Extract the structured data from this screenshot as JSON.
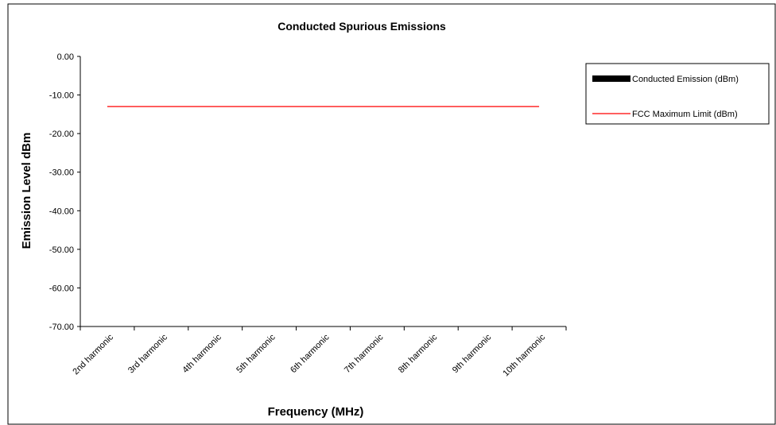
{
  "chart_data": {
    "type": "bar",
    "title": "Conducted Spurious Emissions",
    "x_label": "Frequency (MHz)",
    "y_label": "Emission Level dBm",
    "categories": [
      "2nd harmonic",
      "3rd harmonic",
      "4th harmonic",
      "5th harmonic",
      "6th harmonic",
      "7th harmonic",
      "8th harmonic",
      "9th harmonic",
      "10th harmonic"
    ],
    "series": [
      {
        "name": "Conducted Emission (dBm)",
        "type": "bar",
        "color": "#000000",
        "values": [
          null,
          null,
          null,
          null,
          null,
          null,
          null,
          null,
          null
        ]
      },
      {
        "name": "FCC Maximum Limit (dBm)",
        "type": "line",
        "color": "#ff0000",
        "values": [
          -13,
          -13,
          -13,
          -13,
          -13,
          -13,
          -13,
          -13,
          -13
        ]
      }
    ],
    "ylim": [
      -70,
      0
    ],
    "yticks": [
      {
        "value": 0,
        "label": "0.00"
      },
      {
        "value": -10,
        "label": "-10.00"
      },
      {
        "value": -20,
        "label": "-20.00"
      },
      {
        "value": -30,
        "label": "-30.00"
      },
      {
        "value": -40,
        "label": "-40.00"
      },
      {
        "value": -50,
        "label": "-50.00"
      },
      {
        "value": -60,
        "label": "-60.00"
      },
      {
        "value": -70,
        "label": "-70.00"
      }
    ],
    "grid": false,
    "legend": "right"
  }
}
